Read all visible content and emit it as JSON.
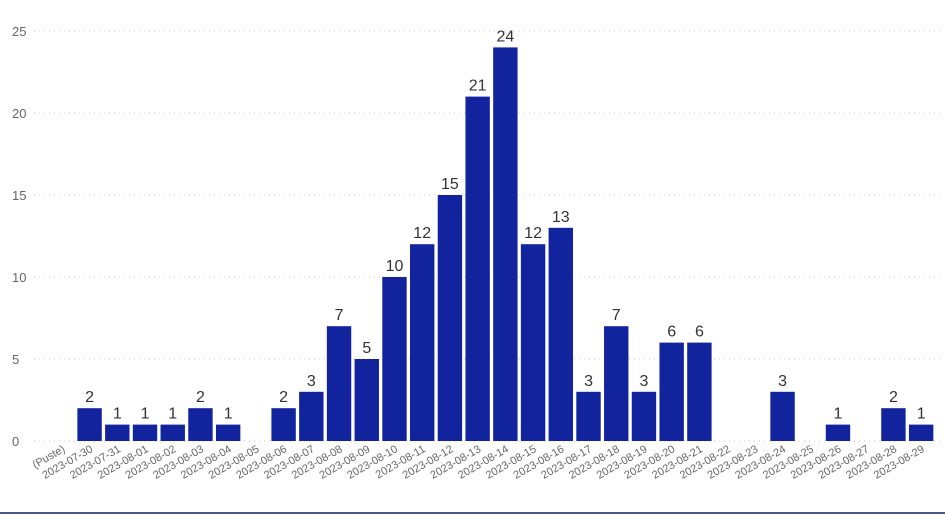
{
  "chart_data": {
    "type": "bar",
    "categories": [
      "(Puste)",
      "2023-07-30",
      "2023-07-31",
      "2023-08-01",
      "2023-08-02",
      "2023-08-03",
      "2023-08-04",
      "2023-08-05",
      "2023-08-06",
      "2023-08-07",
      "2023-08-08",
      "2023-08-09",
      "2023-08-10",
      "2023-08-11",
      "2023-08-12",
      "2023-08-13",
      "2023-08-14",
      "2023-08-15",
      "2023-08-16",
      "2023-08-17",
      "2023-08-18",
      "2023-08-19",
      "2023-08-20",
      "2023-08-21",
      "2023-08-22",
      "2023-08-23",
      "2023-08-24",
      "2023-08-25",
      "2023-08-26",
      "2023-08-27",
      "2023-08-28",
      "2023-08-29"
    ],
    "values": [
      null,
      2,
      1,
      1,
      1,
      2,
      1,
      null,
      2,
      3,
      7,
      5,
      10,
      12,
      15,
      21,
      24,
      12,
      13,
      3,
      7,
      3,
      6,
      6,
      null,
      null,
      3,
      null,
      1,
      null,
      2,
      1
    ],
    "data_labels": [
      "",
      "2",
      "1",
      "1",
      "1",
      "2",
      "1",
      "",
      "2",
      "3",
      "7",
      "5",
      "10",
      "12",
      "15",
      "21",
      "24",
      "12",
      "13",
      "3",
      "7",
      "3",
      "6",
      "6",
      "",
      "",
      "3",
      "",
      "1",
      "",
      "2",
      "1"
    ],
    "y_ticks": [
      "0",
      "5",
      "10",
      "15",
      "20",
      "25"
    ],
    "ylim": [
      0,
      25
    ],
    "grid": true,
    "legend": "none",
    "title": "",
    "xlabel": "",
    "ylabel": "",
    "bar_color": "#12239e"
  }
}
